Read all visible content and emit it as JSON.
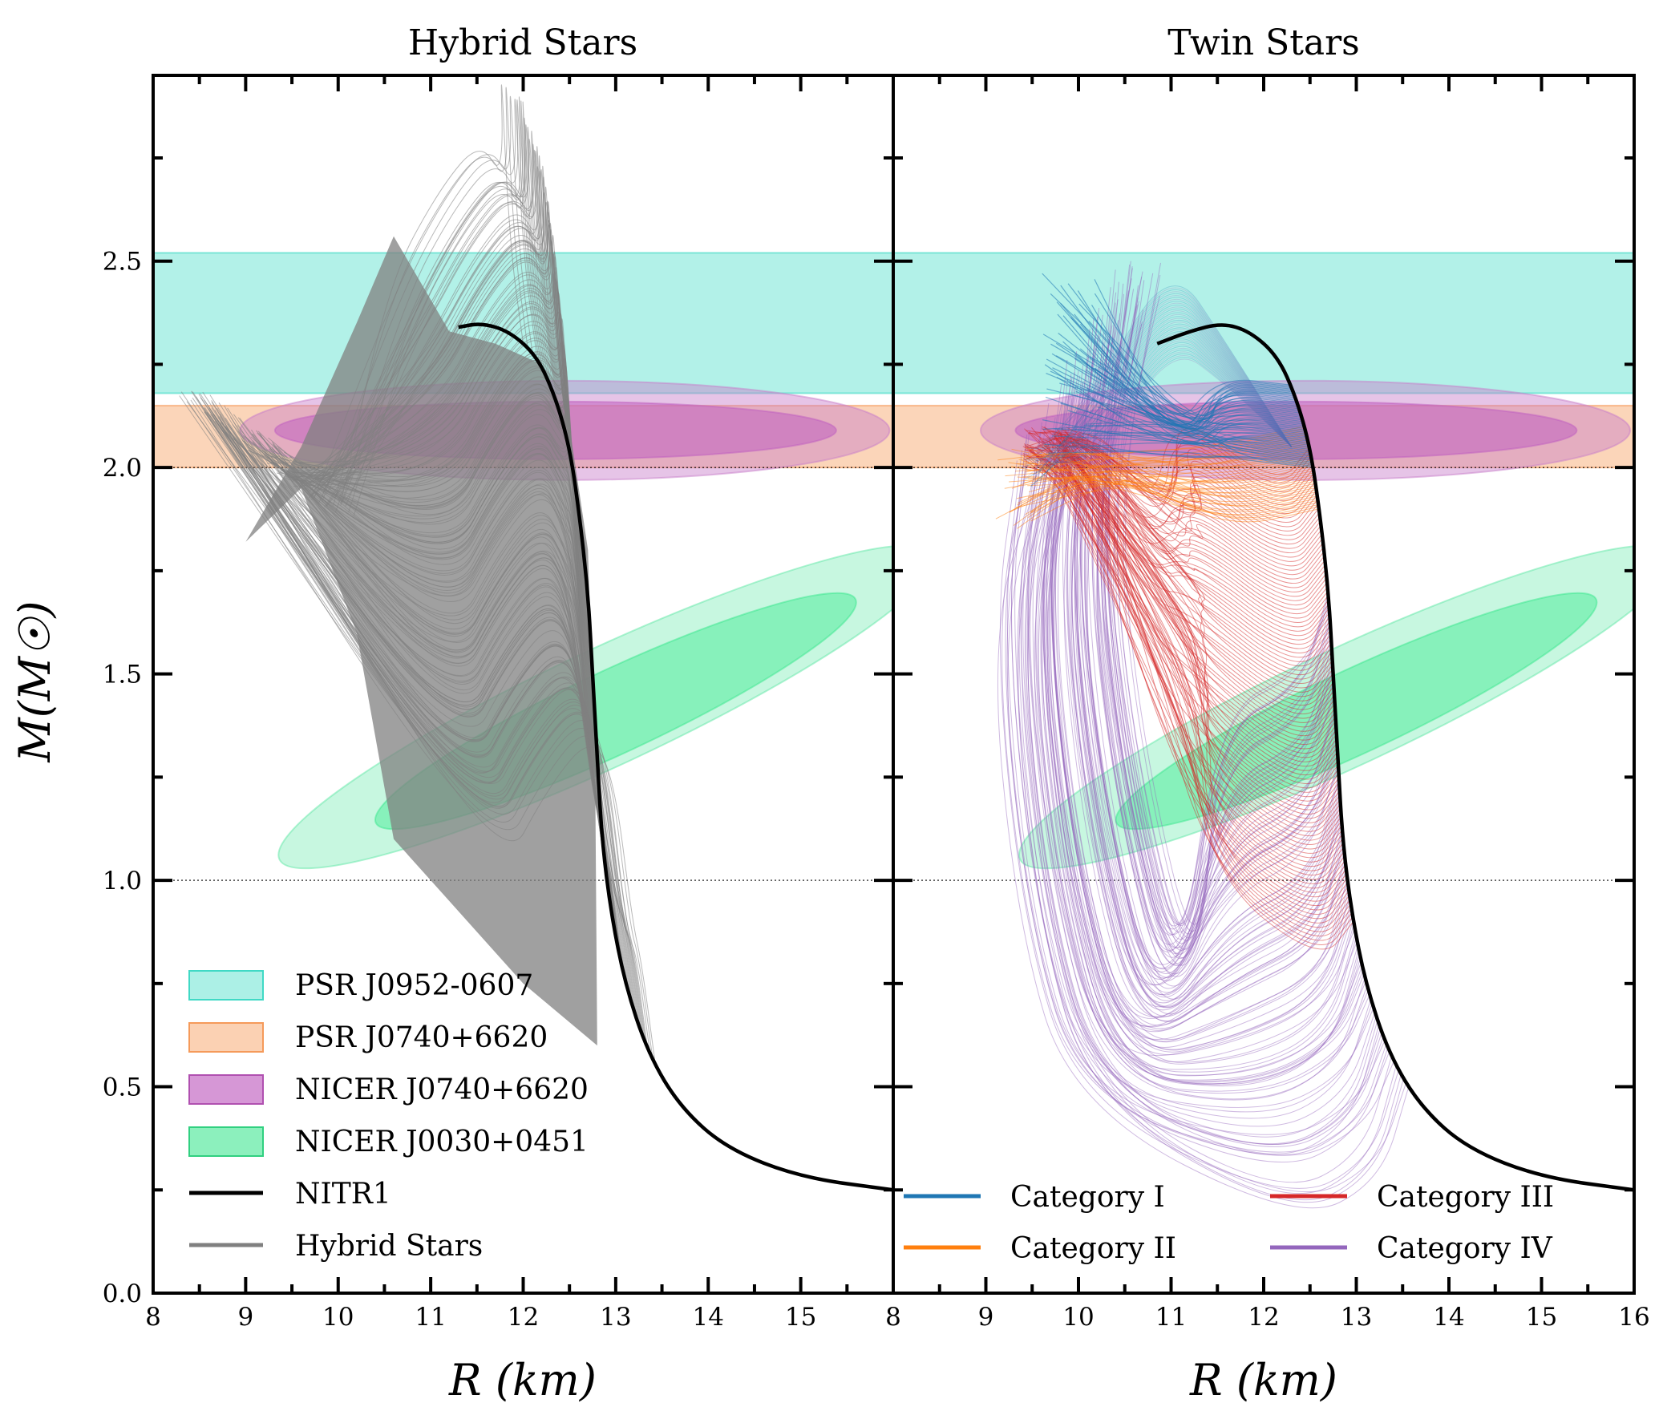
{
  "chart_data": [
    {
      "type": "line",
      "title": "Hybrid Stars",
      "xlabel": "R (km)",
      "ylabel": "M(M☉)",
      "xlim": [
        8,
        16
      ],
      "ylim": [
        0,
        2.95
      ],
      "xticks": [
        "8",
        "9",
        "10",
        "11",
        "12",
        "13",
        "14",
        "15"
      ],
      "yticks": [
        "0.0",
        "0.5",
        "1.0",
        "1.5",
        "2.0",
        "2.5"
      ],
      "reference_lines": [
        1.0,
        2.0
      ],
      "bands": [
        {
          "name": "PSR J0952-0607",
          "y_range": [
            2.18,
            2.52
          ],
          "color": "#7fe8d9"
        },
        {
          "name": "PSR J0740+6620",
          "y_range": [
            2.0,
            2.15
          ],
          "color": "#f9b98a"
        }
      ],
      "ellipses": [
        {
          "name": "NICER J0740+6620",
          "color": "#c060c0",
          "inner": {
            "center": [
              12.4,
              2.08
            ],
            "r_half_width": 3.3,
            "m_half_height": 0.1
          },
          "outer": {
            "center": [
              12.45,
              2.08
            ],
            "r_half_width": 3.8,
            "m_half_height": 0.22
          }
        },
        {
          "name": "NICER J0030+0451",
          "color": "#4ee89a",
          "inner": {
            "center": [
              13.0,
              1.4
            ],
            "r_start": 11.05,
            "m_start": 1.15,
            "r_end": 15.0,
            "m_end": 1.65
          },
          "outer": {
            "center": [
              12.9,
              1.4
            ],
            "r_start": 9.95,
            "m_start": 1.06,
            "r_end": 15.8,
            "m_end": 1.78
          }
        }
      ],
      "series": [
        {
          "name": "NITR1",
          "color": "#000000",
          "points": [
            [
              16.0,
              0.25
            ],
            [
              15.0,
              0.28
            ],
            [
              14.2,
              0.35
            ],
            [
              13.7,
              0.45
            ],
            [
              13.35,
              0.58
            ],
            [
              13.1,
              0.75
            ],
            [
              12.95,
              0.92
            ],
            [
              12.85,
              1.1
            ],
            [
              12.8,
              1.3
            ],
            [
              12.75,
              1.5
            ],
            [
              12.7,
              1.7
            ],
            [
              12.6,
              1.9
            ],
            [
              12.5,
              2.05
            ],
            [
              12.35,
              2.17
            ],
            [
              12.15,
              2.27
            ],
            [
              11.85,
              2.33
            ],
            [
              11.55,
              2.35
            ],
            [
              11.3,
              2.34
            ]
          ]
        },
        {
          "name": "Hybrid Stars",
          "color": "#808080"
        }
      ],
      "legend": [
        "PSR J0952-0607",
        "PSR J0740+6620",
        "NICER J0740+6620",
        "NICER J0030+0451",
        "NITR1",
        "Hybrid Stars"
      ],
      "legend_placement": "lower-left"
    },
    {
      "type": "line",
      "title": "Twin Stars",
      "xlabel": "R (km)",
      "xlim": [
        8,
        16
      ],
      "ylim": [
        0,
        2.95
      ],
      "xticks": [
        "8",
        "9",
        "10",
        "11",
        "12",
        "13",
        "14",
        "15",
        "16"
      ],
      "reference_lines": [
        1.0,
        2.0
      ],
      "bands": [
        {
          "name": "PSR J0952-0607",
          "y_range": [
            2.18,
            2.52
          ],
          "color": "#7fe8d9"
        },
        {
          "name": "PSR J0740+6620",
          "y_range": [
            2.0,
            2.15
          ],
          "color": "#f9b98a"
        }
      ],
      "series": [
        {
          "name": "NITR1",
          "color": "#000000",
          "points": [
            [
              16.0,
              0.25
            ],
            [
              15.0,
              0.28
            ],
            [
              14.2,
              0.35
            ],
            [
              13.7,
              0.45
            ],
            [
              13.35,
              0.58
            ],
            [
              13.1,
              0.75
            ],
            [
              12.95,
              0.92
            ],
            [
              12.85,
              1.1
            ],
            [
              12.8,
              1.3
            ],
            [
              12.75,
              1.5
            ],
            [
              12.7,
              1.7
            ],
            [
              12.6,
              1.9
            ],
            [
              12.5,
              2.05
            ],
            [
              12.35,
              2.17
            ],
            [
              12.15,
              2.27
            ],
            [
              11.85,
              2.33
            ],
            [
              11.55,
              2.35
            ],
            [
              11.2,
              2.33
            ],
            [
              10.85,
              2.3
            ]
          ]
        },
        {
          "name": "Category I",
          "color": "#1f77b4"
        },
        {
          "name": "Category II",
          "color": "#ff7f0e"
        },
        {
          "name": "Category III",
          "color": "#d62728"
        },
        {
          "name": "Category IV",
          "color": "#9467bd"
        }
      ],
      "legend": [
        "Category I",
        "Category II",
        "Category III",
        "Category IV"
      ],
      "legend_placement": "bottom"
    }
  ]
}
